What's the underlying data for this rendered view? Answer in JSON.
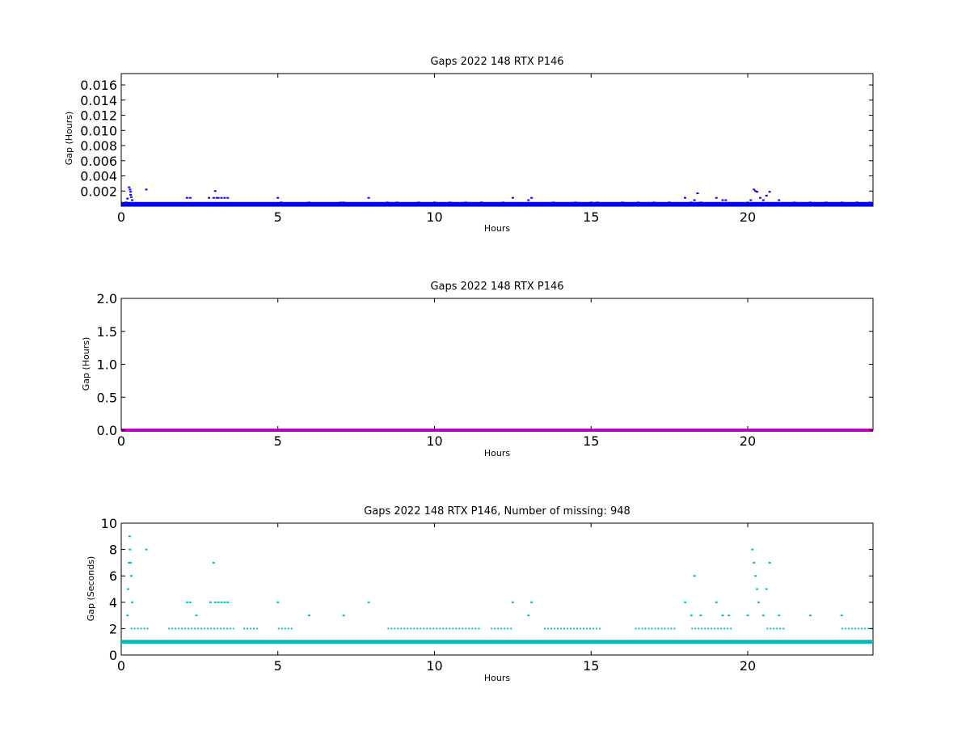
{
  "chart_data": [
    {
      "type": "scatter",
      "title": "Gaps 2022 148 RTX  P146",
      "xlabel": "Hours",
      "ylabel": "Gap (Hours)",
      "xlim": [
        0,
        24
      ],
      "ylim": [
        0,
        0.0175
      ],
      "xticks": [
        "0",
        "5",
        "10",
        "15",
        "20"
      ],
      "yticks": [
        "0.002",
        "0.004",
        "0.006",
        "0.008",
        "0.010",
        "0.012",
        "0.014",
        "0.016"
      ],
      "marker_color": "#0000ff",
      "series": [
        {
          "x": [
            0.15,
            0.2,
            0.25,
            0.28,
            0.3,
            0.3,
            0.32,
            0.35,
            0.8,
            2.1,
            2.2,
            2.8,
            2.95,
            3.0,
            3.05,
            3.1,
            3.2,
            3.3,
            3.4,
            5.0,
            5.1,
            6.0,
            7.0,
            7.1,
            7.9,
            8.5,
            8.8,
            9.5,
            10.0,
            10.5,
            11.0,
            11.5,
            12.2,
            12.5,
            13.0,
            13.1,
            13.8,
            14.5,
            15.0,
            15.2,
            16.0,
            16.5,
            17.0,
            17.5,
            18.0,
            18.2,
            18.3,
            18.4,
            18.5,
            19.0,
            19.2,
            19.3,
            20.0,
            20.1,
            20.2,
            20.25,
            20.3,
            20.4,
            20.5,
            20.6,
            20.7,
            21.0,
            21.5,
            22.0,
            22.5,
            23.0,
            23.5,
            23.9
          ],
          "y": [
            0.0005,
            0.001,
            0.0025,
            0.0022,
            0.0019,
            0.0015,
            0.0012,
            0.0008,
            0.0022,
            0.0011,
            0.0011,
            0.0011,
            0.0011,
            0.002,
            0.0011,
            0.0011,
            0.0011,
            0.0011,
            0.0011,
            0.0011,
            0.0005,
            0.0005,
            0.0005,
            0.0005,
            0.0011,
            0.0005,
            0.0005,
            0.0005,
            0.0005,
            0.0005,
            0.0005,
            0.0005,
            0.0005,
            0.0011,
            0.0008,
            0.0011,
            0.0005,
            0.0005,
            0.0005,
            0.0005,
            0.0005,
            0.0005,
            0.0005,
            0.0005,
            0.0011,
            0.0005,
            0.0008,
            0.0017,
            0.0005,
            0.0011,
            0.0008,
            0.0008,
            0.0005,
            0.0008,
            0.0022,
            0.002,
            0.0019,
            0.0011,
            0.0008,
            0.0014,
            0.0019,
            0.0008,
            0.0005,
            0.0005,
            0.0005,
            0.0005,
            0.0005,
            0.0005
          ]
        }
      ],
      "baseline_y": 0.0003
    },
    {
      "type": "scatter",
      "title": "Gaps 2022 148 RTX  P146",
      "xlabel": "Hours",
      "ylabel": "Gap (Hours)",
      "xlim": [
        0,
        24
      ],
      "ylim": [
        0,
        2.0
      ],
      "xticks": [
        "0",
        "5",
        "10",
        "15",
        "20"
      ],
      "yticks": [
        "0.0",
        "0.5",
        "1.0",
        "1.5",
        "2.0"
      ],
      "marker_color": "#bf00bf",
      "baseline_y": 0.0
    },
    {
      "type": "scatter",
      "title": "Gaps 2022 148 RTX  P146, Number of missing: 948",
      "xlabel": "Hours",
      "ylabel": "Gap (Seconds)",
      "xlim": [
        0,
        24
      ],
      "ylim": [
        0,
        10
      ],
      "xticks": [
        "0",
        "5",
        "10",
        "15",
        "20"
      ],
      "yticks": [
        "0",
        "2",
        "4",
        "6",
        "8",
        "10"
      ],
      "marker_color": "#00bfbf",
      "series": [
        {
          "x": [
            0.2,
            0.22,
            0.25,
            0.27,
            0.28,
            0.3,
            0.32,
            0.35,
            0.8,
            2.1,
            2.2,
            2.4,
            2.85,
            2.95,
            3.0,
            3.1,
            3.2,
            3.3,
            3.4,
            5.0,
            6.0,
            7.1,
            7.9,
            12.5,
            13.0,
            13.1,
            18.0,
            18.2,
            18.3,
            18.5,
            19.0,
            19.2,
            19.4,
            20.0,
            20.15,
            20.2,
            20.25,
            20.3,
            20.35,
            20.5,
            20.6,
            20.7,
            21.0,
            22.0,
            23.0
          ],
          "y": [
            3,
            5,
            7,
            9,
            8,
            7,
            6,
            4,
            8,
            4,
            4,
            3,
            4,
            7,
            4,
            4,
            4,
            4,
            4,
            4,
            3,
            3,
            4,
            4,
            3,
            4,
            4,
            3,
            6,
            3,
            4,
            3,
            3,
            3,
            8,
            7,
            6,
            5,
            4,
            3,
            5,
            7,
            3,
            3,
            3
          ]
        }
      ],
      "baseline_y": 1.0,
      "secondary_y": 2.0
    }
  ]
}
